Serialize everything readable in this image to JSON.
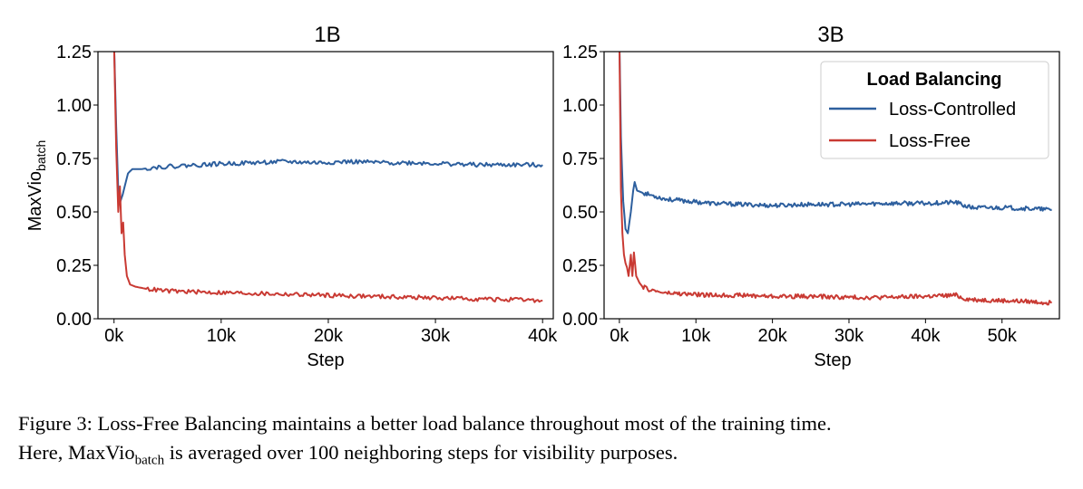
{
  "figure": {
    "ylabel_main": "MaxVio",
    "ylabel_sub": "batch",
    "legend": {
      "title": "Load Balancing",
      "entries": [
        {
          "label": "Loss-Controlled",
          "color": "#2d5f9e"
        },
        {
          "label": "Loss-Free",
          "color": "#c93a33"
        }
      ]
    }
  },
  "chart_data": [
    {
      "type": "line",
      "title": "1B",
      "xlabel": "Step",
      "ylabel": "MaxVio_batch",
      "xlim": [
        -1500,
        41000
      ],
      "ylim": [
        0,
        1.25
      ],
      "xticks": [
        0,
        10000,
        20000,
        30000,
        40000
      ],
      "xtick_labels": [
        "0k",
        "10k",
        "20k",
        "30k",
        "40k"
      ],
      "yticks": [
        0,
        0.25,
        0.5,
        0.75,
        1.0,
        1.25
      ],
      "ytick_labels": [
        "0.00",
        "0.25",
        "0.50",
        "0.75",
        "1.00",
        "1.25"
      ],
      "series": [
        {
          "name": "Loss-Controlled",
          "color": "#2d5f9e",
          "x": [
            0,
            200,
            400,
            600,
            800,
            1000,
            1300,
            1700,
            2500,
            4000,
            6000,
            8000,
            10000,
            13000,
            16000,
            19000,
            22000,
            25000,
            28000,
            31000,
            34000,
            37000,
            40000
          ],
          "y": [
            1.3,
            0.9,
            0.6,
            0.55,
            0.58,
            0.62,
            0.68,
            0.7,
            0.7,
            0.71,
            0.715,
            0.72,
            0.725,
            0.73,
            0.735,
            0.73,
            0.735,
            0.73,
            0.73,
            0.725,
            0.72,
            0.72,
            0.72
          ]
        },
        {
          "name": "Loss-Free",
          "color": "#c93a33",
          "x": [
            0,
            200,
            400,
            550,
            700,
            850,
            1000,
            1200,
            1500,
            2000,
            3000,
            5000,
            8000,
            12000,
            16000,
            20000,
            24000,
            28000,
            32000,
            36000,
            40000
          ],
          "y": [
            1.3,
            0.8,
            0.5,
            0.62,
            0.4,
            0.45,
            0.3,
            0.2,
            0.16,
            0.15,
            0.14,
            0.13,
            0.125,
            0.12,
            0.115,
            0.11,
            0.105,
            0.1,
            0.095,
            0.09,
            0.085
          ]
        }
      ]
    },
    {
      "type": "line",
      "title": "3B",
      "xlabel": "Step",
      "ylabel": "",
      "xlim": [
        -2000,
        57500
      ],
      "ylim": [
        0,
        1.25
      ],
      "xticks": [
        0,
        10000,
        20000,
        30000,
        40000,
        50000
      ],
      "xtick_labels": [
        "0k",
        "10k",
        "20k",
        "30k",
        "40k",
        "50k"
      ],
      "yticks": [
        0,
        0.25,
        0.5,
        0.75,
        1.0,
        1.25
      ],
      "ytick_labels": [
        "0.00",
        "0.25",
        "0.50",
        "0.75",
        "1.00",
        "1.25"
      ],
      "series": [
        {
          "name": "Loss-Controlled",
          "color": "#2d5f9e",
          "x": [
            0,
            200,
            500,
            800,
            1100,
            1500,
            1800,
            2000,
            2300,
            3000,
            4000,
            6000,
            9000,
            12000,
            16000,
            20000,
            25000,
            30000,
            35000,
            40000,
            44000,
            45000,
            46000,
            50000,
            54000,
            56500
          ],
          "y": [
            1.3,
            0.85,
            0.55,
            0.42,
            0.4,
            0.5,
            0.6,
            0.64,
            0.6,
            0.59,
            0.58,
            0.56,
            0.55,
            0.54,
            0.535,
            0.53,
            0.535,
            0.535,
            0.54,
            0.54,
            0.545,
            0.53,
            0.52,
            0.52,
            0.515,
            0.51
          ]
        },
        {
          "name": "Loss-Free",
          "color": "#c93a33",
          "x": [
            0,
            200,
            400,
            600,
            800,
            1000,
            1200,
            1500,
            1700,
            1900,
            2200,
            2600,
            3000,
            4000,
            6000,
            9000,
            12000,
            16000,
            20000,
            25000,
            30000,
            35000,
            40000,
            44000,
            45000,
            46000,
            50000,
            54000,
            56500
          ],
          "y": [
            1.3,
            0.6,
            0.4,
            0.3,
            0.26,
            0.24,
            0.2,
            0.3,
            0.2,
            0.31,
            0.2,
            0.17,
            0.15,
            0.135,
            0.12,
            0.115,
            0.11,
            0.11,
            0.105,
            0.105,
            0.1,
            0.1,
            0.105,
            0.11,
            0.095,
            0.09,
            0.085,
            0.08,
            0.075
          ]
        }
      ]
    }
  ],
  "caption": {
    "line1": "Figure 3: Loss-Free Balancing maintains a better load balance throughout most of the training time.",
    "line2_prefix": "Here, MaxVio",
    "line2_sub": "batch",
    "line2_suffix": " is averaged over 100 neighboring steps for visibility purposes."
  }
}
